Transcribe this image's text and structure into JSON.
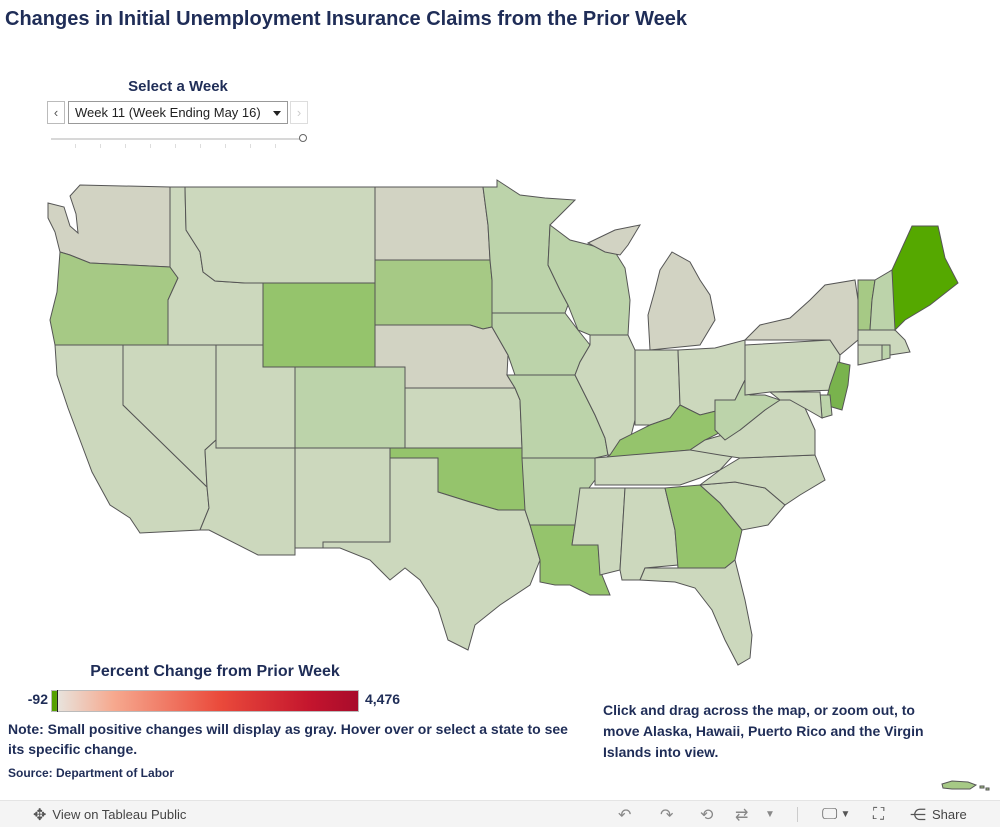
{
  "title": "Changes in Initial Unemployment Insurance Claims from the Prior Week",
  "week_filter": {
    "label": "Select a Week",
    "selected": "Week 11 (Week Ending May 16)"
  },
  "legend": {
    "title": "Percent Change from Prior Week",
    "min_label": "-92",
    "max_label": "4,476",
    "colors": {
      "negative": "#55a000",
      "neutral": "#e8e3dc",
      "positive": "#a80c2c"
    }
  },
  "note": "Note: Small positive changes will display as gray. Hover over or select a state to see its specific change.",
  "source": "Source: Department of Labor",
  "instruction": "Click and drag across the map, or zoom out, to move Alaska, Hawaii, Puerto Rico and the Virgin Islands into view.",
  "toolbar": {
    "view_label": "View on Tableau Public",
    "share_label": "Share"
  },
  "palette": {
    "gray": "#d2d3c3",
    "pale": "#ccd8bd",
    "light": "#bcd3aa",
    "mid": "#a6c985",
    "strong": "#95c46c",
    "vivid": "#79b34d",
    "maine": "#55a800"
  },
  "states": [
    {
      "abbr": "WA",
      "shade": "gray"
    },
    {
      "abbr": "OR",
      "shade": "mid"
    },
    {
      "abbr": "CA",
      "shade": "pale"
    },
    {
      "abbr": "ID",
      "shade": "pale"
    },
    {
      "abbr": "NV",
      "shade": "pale"
    },
    {
      "abbr": "MT",
      "shade": "pale"
    },
    {
      "abbr": "WY",
      "shade": "strong"
    },
    {
      "abbr": "UT",
      "shade": "pale"
    },
    {
      "abbr": "AZ",
      "shade": "pale"
    },
    {
      "abbr": "CO",
      "shade": "light"
    },
    {
      "abbr": "NM",
      "shade": "pale"
    },
    {
      "abbr": "ND",
      "shade": "gray"
    },
    {
      "abbr": "SD",
      "shade": "mid"
    },
    {
      "abbr": "NE",
      "shade": "gray"
    },
    {
      "abbr": "KS",
      "shade": "pale"
    },
    {
      "abbr": "OK",
      "shade": "strong"
    },
    {
      "abbr": "TX",
      "shade": "pale"
    },
    {
      "abbr": "MN",
      "shade": "light"
    },
    {
      "abbr": "IA",
      "shade": "light"
    },
    {
      "abbr": "MO",
      "shade": "light"
    },
    {
      "abbr": "AR",
      "shade": "light"
    },
    {
      "abbr": "LA",
      "shade": "strong"
    },
    {
      "abbr": "WI",
      "shade": "light"
    },
    {
      "abbr": "IL",
      "shade": "pale"
    },
    {
      "abbr": "MI",
      "shade": "gray"
    },
    {
      "abbr": "IN",
      "shade": "pale"
    },
    {
      "abbr": "OH",
      "shade": "pale"
    },
    {
      "abbr": "KY",
      "shade": "strong"
    },
    {
      "abbr": "TN",
      "shade": "pale"
    },
    {
      "abbr": "MS",
      "shade": "pale"
    },
    {
      "abbr": "AL",
      "shade": "pale"
    },
    {
      "abbr": "GA",
      "shade": "strong"
    },
    {
      "abbr": "FL",
      "shade": "pale"
    },
    {
      "abbr": "SC",
      "shade": "pale"
    },
    {
      "abbr": "NC",
      "shade": "pale"
    },
    {
      "abbr": "VA",
      "shade": "pale"
    },
    {
      "abbr": "WV",
      "shade": "light"
    },
    {
      "abbr": "PA",
      "shade": "pale"
    },
    {
      "abbr": "NY",
      "shade": "gray"
    },
    {
      "abbr": "NJ",
      "shade": "vivid"
    },
    {
      "abbr": "DE",
      "shade": "light"
    },
    {
      "abbr": "MD",
      "shade": "pale"
    },
    {
      "abbr": "CT",
      "shade": "pale"
    },
    {
      "abbr": "RI",
      "shade": "light"
    },
    {
      "abbr": "MA",
      "shade": "pale"
    },
    {
      "abbr": "VT",
      "shade": "mid"
    },
    {
      "abbr": "NH",
      "shade": "light"
    },
    {
      "abbr": "ME",
      "shade": "maine"
    },
    {
      "abbr": "PR",
      "shade": "mid"
    }
  ]
}
